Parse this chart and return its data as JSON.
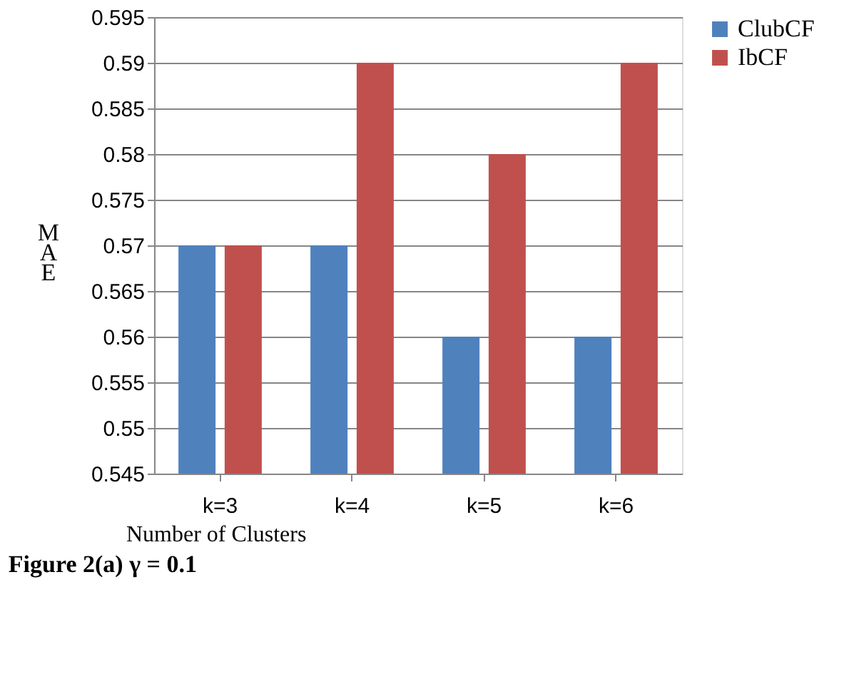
{
  "chart_data": {
    "type": "bar",
    "title": "Figure 2(a) γ = 0.1",
    "xlabel": "Number of Clusters",
    "ylabel": "MAE",
    "categories": [
      "k=3",
      "k=4",
      "k=5",
      "k=6"
    ],
    "series": [
      {
        "name": "ClubCF",
        "color": "#4f81bd",
        "values": [
          0.57,
          0.57,
          0.56,
          0.56
        ]
      },
      {
        "name": "IbCF",
        "color": "#c0504d",
        "values": [
          0.57,
          0.59,
          0.58,
          0.59
        ]
      }
    ],
    "ylim": [
      0.545,
      0.595
    ],
    "yticks": [
      0.545,
      0.55,
      0.555,
      0.56,
      0.565,
      0.57,
      0.575,
      0.58,
      0.585,
      0.59,
      0.595
    ],
    "grid": "y",
    "legend": "right"
  }
}
